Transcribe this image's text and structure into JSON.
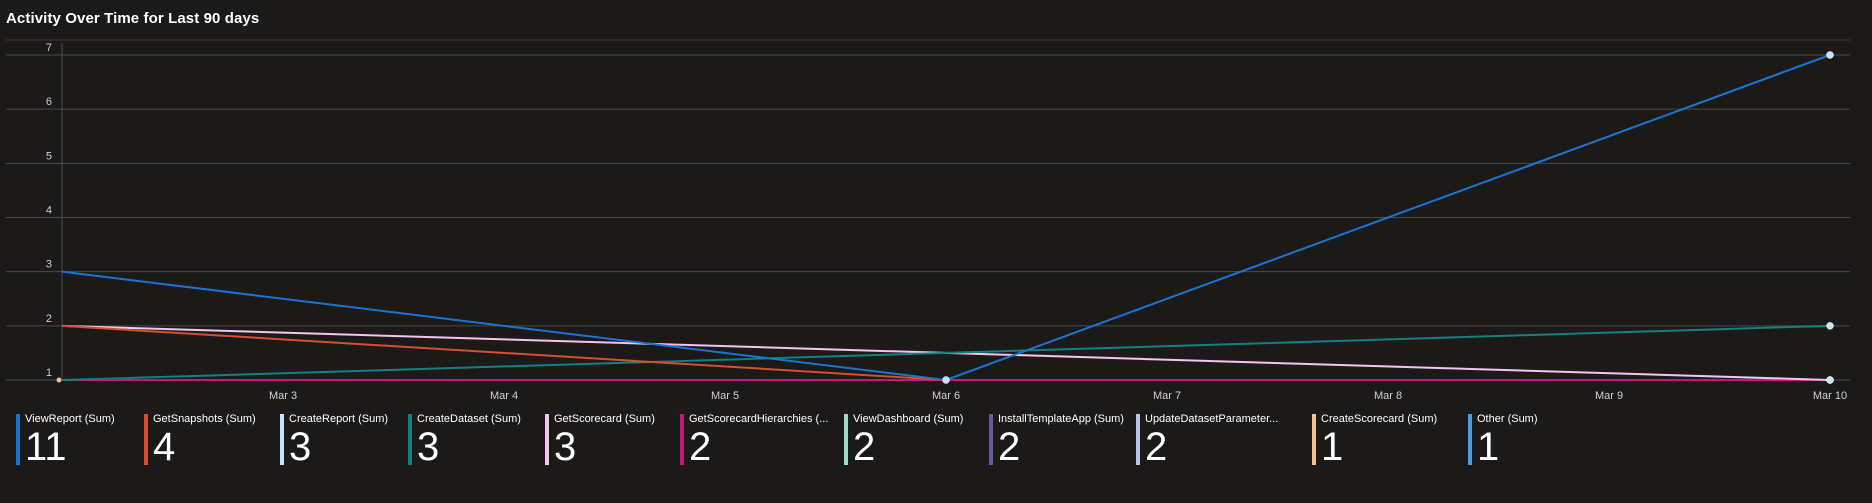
{
  "chart_data": {
    "type": "line",
    "title": "Activity Over Time for Last 90 days",
    "x": [
      "Mar 2",
      "Mar 6",
      "Mar 10"
    ],
    "x_ticks": [
      "Mar 3",
      "Mar 4",
      "Mar 5",
      "Mar 6",
      "Mar 7",
      "Mar 8",
      "Mar 9",
      "Mar 10"
    ],
    "y_ticks": [
      1,
      2,
      3,
      4,
      5,
      6,
      7
    ],
    "ylim": [
      1,
      7
    ],
    "grid": true,
    "legend_position": "bottom",
    "series": [
      {
        "name": "ViewReport (Sum)",
        "total": "11",
        "color": "#1a73d1",
        "points": [
          [
            "Mar 2",
            3
          ],
          [
            "Mar 6",
            1
          ],
          [
            "Mar 10",
            7
          ]
        ]
      },
      {
        "name": "GetSnapshots (Sum)",
        "total": "4",
        "color": "#d64e2f",
        "points": [
          [
            "Mar 2",
            2
          ],
          [
            "Mar 6",
            1
          ]
        ]
      },
      {
        "name": "CreateReport (Sum)",
        "total": "3",
        "color": "#c6e3f7",
        "points": []
      },
      {
        "name": "CreateDataset (Sum)",
        "total": "3",
        "color": "#13807c",
        "points": [
          [
            "Mar 2",
            1
          ],
          [
            "Mar 10",
            2
          ]
        ]
      },
      {
        "name": "GetScorecard (Sum)",
        "total": "3",
        "color": "#f2c4f0",
        "points": [
          [
            "Mar 2",
            2
          ],
          [
            "Mar 10",
            1
          ]
        ]
      },
      {
        "name": "GetScorecardHierarchies (...",
        "total": "2",
        "color": "#c2187d",
        "points": [
          [
            "Mar 2",
            1
          ],
          [
            "Mar 10",
            1
          ]
        ]
      },
      {
        "name": "ViewDashboard (Sum)",
        "total": "2",
        "color": "#9fdccc",
        "points": []
      },
      {
        "name": "InstallTemplateApp (Sum)",
        "total": "2",
        "color": "#6b56a8",
        "points": []
      },
      {
        "name": "UpdateDatasetParameter...",
        "total": "2",
        "color": "#bcc4e8",
        "points": []
      },
      {
        "name": "CreateScorecard (Sum)",
        "total": "1",
        "color": "#f6c18a",
        "points": []
      },
      {
        "name": "Other (Sum)",
        "total": "1",
        "color": "#4e9de0",
        "points": []
      }
    ]
  }
}
